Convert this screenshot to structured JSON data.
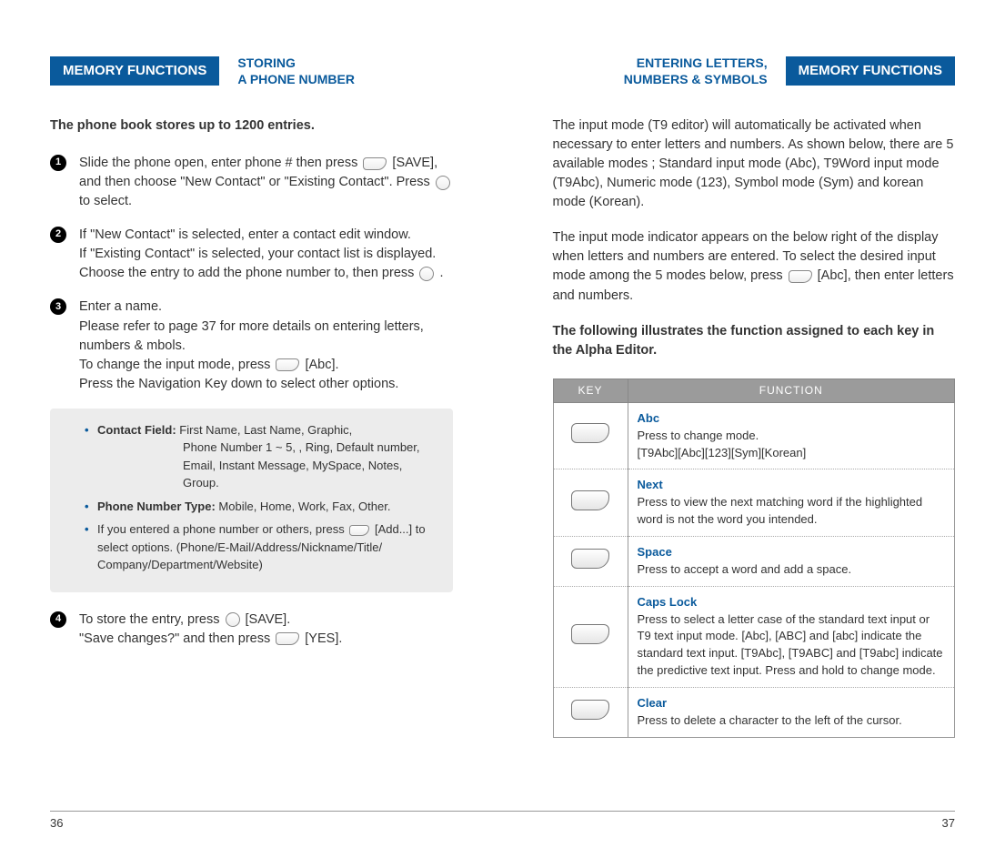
{
  "left": {
    "tab": "MEMORY FUNCTIONS",
    "subtitle_l1": "STORING",
    "subtitle_l2": "A PHONE NUMBER",
    "intro": "The phone book stores up to 1200 entries.",
    "step1": "Slide the phone open, enter phone # then press [SAVE], and then choose \"New Contact\" or \"Existing Contact\". Press  to select.",
    "step2": "If \"New Contact\" is selected, enter a contact edit window.\nIf \"Existing Contact\" is selected, your contact list is displayed. Choose the entry to add the phone number to, then press  .",
    "step3": "Enter a name.\nPlease refer to page 37 for more details on entering letters, numbers & mbols.\nTo change the input mode, press [Abc].\nPress the Navigation Key down to select other options.",
    "box_contact_label": "Contact Field:",
    "box_contact_l1": "First Name, Last Name, Graphic,",
    "box_contact_l2": "Phone Number 1 ~ 5, , Ring, Default number,",
    "box_contact_l3": "Email, Instant Message, MySpace, Notes,",
    "box_contact_l4": "Group.",
    "box_phone_label": "Phone Number Type:",
    "box_phone_text": "Mobile, Home, Work, Fax, Other.",
    "box_note": "If you entered a phone number or others, press [Add...] to select options. (Phone/E-Mail/Address/Nickname/Title/ Company/Department/Website)",
    "step4": "To store the entry, press  [SAVE].\n\"Save changes?\" and then press [YES].",
    "page_num": "36"
  },
  "right": {
    "subtitle_l1": "ENTERING LETTERS,",
    "subtitle_l2": "NUMBERS & SYMBOLS",
    "tab": "MEMORY FUNCTIONS",
    "para1": "The input mode (T9 editor) will automatically be activated when necessary to enter letters and numbers. As shown below, there are 5 available modes ; Standard input mode (Abc), T9Word input mode (T9Abc), Numeric mode (123), Symbol mode (Sym) and korean mode (Korean).",
    "para2": "The input mode indicator appears on the below right of the display when letters and numbers are entered. To select the desired input mode among the 5 modes below, press [Abc], then enter letters and numbers.",
    "bold": "The following illustrates the function assigned to each key in the Alpha Editor.",
    "th_key": "KEY",
    "th_func": "FUNCTION",
    "rows": [
      {
        "title": "Abc",
        "desc": "Press to change mode.\n[T9Abc][Abc][123][Sym][Korean]"
      },
      {
        "title": "Next",
        "desc": "Press to view the next matching word if the highlighted word is not the word you intended."
      },
      {
        "title": "Space",
        "desc": "Press to accept a word and add a space."
      },
      {
        "title": "Caps Lock",
        "desc": "Press to select a letter case of the standard text input or T9 text input mode. [Abc], [ABC] and [abc] indicate the standard text input. [T9Abc], [T9ABC] and [T9abc] indicate the predictive text input. Press and hold to change mode."
      },
      {
        "title": "Clear",
        "desc": "Press to delete a character to the left of the cursor."
      }
    ],
    "page_num": "37"
  }
}
